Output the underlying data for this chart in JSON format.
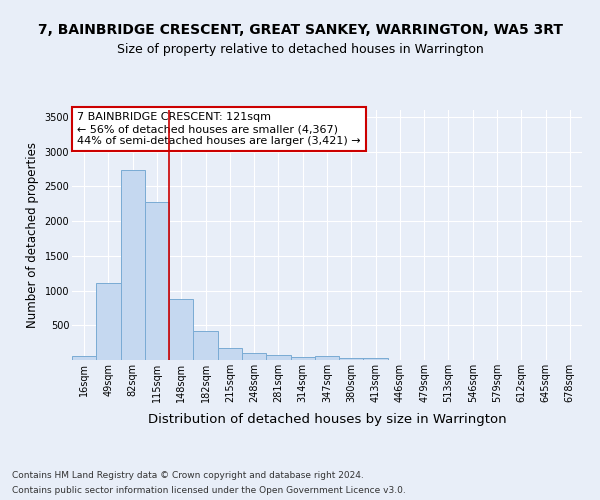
{
  "title1": "7, BAINBRIDGE CRESCENT, GREAT SANKEY, WARRINGTON, WA5 3RT",
  "title2": "Size of property relative to detached houses in Warrington",
  "xlabel": "Distribution of detached houses by size in Warrington",
  "ylabel": "Number of detached properties",
  "categories": [
    "16sqm",
    "49sqm",
    "82sqm",
    "115sqm",
    "148sqm",
    "182sqm",
    "215sqm",
    "248sqm",
    "281sqm",
    "314sqm",
    "347sqm",
    "380sqm",
    "413sqm",
    "446sqm",
    "479sqm",
    "513sqm",
    "546sqm",
    "579sqm",
    "612sqm",
    "645sqm",
    "678sqm"
  ],
  "values": [
    55,
    1110,
    2740,
    2280,
    880,
    420,
    170,
    100,
    65,
    50,
    55,
    35,
    25,
    0,
    0,
    0,
    0,
    0,
    0,
    0,
    0
  ],
  "bar_color": "#c5d8f0",
  "bar_edge_color": "#7aabd4",
  "vline_color": "#cc0000",
  "vline_x": 3.5,
  "annotation_text": "7 BAINBRIDGE CRESCENT: 121sqm\n← 56% of detached houses are smaller (4,367)\n44% of semi-detached houses are larger (3,421) →",
  "annotation_box_facecolor": "white",
  "annotation_box_edgecolor": "#cc0000",
  "ylim": [
    0,
    3600
  ],
  "yticks": [
    0,
    500,
    1000,
    1500,
    2000,
    2500,
    3000,
    3500
  ],
  "footer1": "Contains HM Land Registry data © Crown copyright and database right 2024.",
  "footer2": "Contains public sector information licensed under the Open Government Licence v3.0.",
  "bg_color": "#e8eef8",
  "title1_fontsize": 10,
  "title2_fontsize": 9,
  "xlabel_fontsize": 9.5,
  "ylabel_fontsize": 8.5,
  "tick_fontsize": 7,
  "annot_fontsize": 8,
  "footer_fontsize": 6.5
}
